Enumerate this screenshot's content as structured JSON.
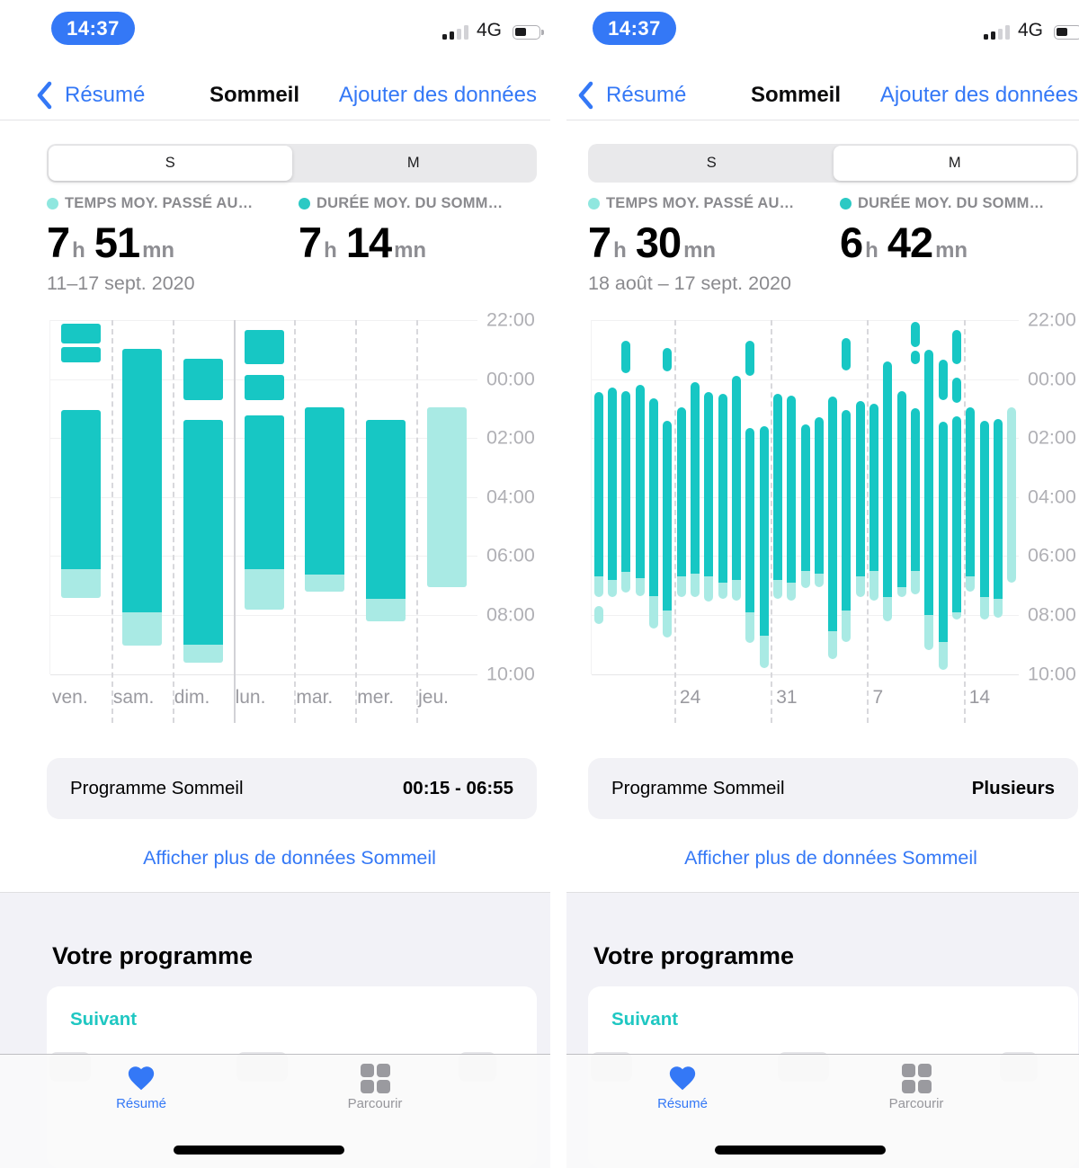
{
  "status_bar": {
    "time": "14:37",
    "network": "4G",
    "signal_bars_filled": 2,
    "signal_bars_total": 4,
    "battery_percent": 45
  },
  "nav": {
    "back": "Résumé",
    "title": "Sommeil",
    "action": "Ajouter des données"
  },
  "segments": {
    "s": "S",
    "m": "M"
  },
  "units": {
    "h": "h",
    "mn": "mn"
  },
  "schedule_label": "Programme Sommeil",
  "more_link": "Afficher plus de données Sommeil",
  "section_title": "Votre programme",
  "next_label": "Suivant",
  "tab_bar": {
    "resume": "Résumé",
    "browse": "Parcourir"
  },
  "colors": {
    "accent_blue": "#3478F6",
    "sleep_teal": "#17C7C4",
    "sleep_teal_light": "#A9EAE4"
  },
  "panels": [
    {
      "segment_selected": "S",
      "stats": [
        {
          "label": "TEMPS MOY. PASSÉ AU…",
          "hours": "7",
          "minutes": "51"
        },
        {
          "label": "DURÉE MOY. DU SOMM…",
          "hours": "7",
          "minutes": "14"
        }
      ],
      "date_range": "11–17 sept. 2020",
      "schedule_value": "00:15 - 06:55",
      "chart": {
        "type": "bar",
        "note": "hours are offsets after 22:00; dark = asleep, light = in bed",
        "y_ticks": [
          "22:00",
          "00:00",
          "02:00",
          "04:00",
          "06:00",
          "08:00",
          "10:00"
        ],
        "separators": [
          {
            "slot": 1,
            "style": "dashed"
          },
          {
            "slot": 2,
            "style": "dashed"
          },
          {
            "slot": 3,
            "style": "solid"
          },
          {
            "slot": 4,
            "style": "dashed"
          },
          {
            "slot": 5,
            "style": "dashed"
          },
          {
            "slot": 6,
            "style": "dashed"
          }
        ],
        "bars": [
          {
            "label": "ven.",
            "pre": [
              [
                0.12,
                0.78
              ],
              [
                0.9,
                1.42
              ]
            ],
            "dark": [
              3.05,
              8.45
            ],
            "light": [
              8.45,
              9.42
            ]
          },
          {
            "label": "sam.",
            "dark": [
              0.98,
              9.9
            ],
            "light": [
              9.9,
              11.05
            ]
          },
          {
            "label": "dim.",
            "pre": [
              [
                1.32,
                2.72
              ]
            ],
            "dark": [
              3.38,
              11.0
            ],
            "light": [
              11.0,
              11.62
            ]
          },
          {
            "label": "lun.",
            "pre": [
              [
                0.35,
                1.5
              ],
              [
                1.85,
                2.72
              ]
            ],
            "dark": [
              3.22,
              8.45
            ],
            "light": [
              8.45,
              9.82
            ]
          },
          {
            "label": "mar.",
            "dark": [
              2.97,
              8.62
            ],
            "light": [
              8.62,
              9.22
            ]
          },
          {
            "label": "mer.",
            "dark": [
              3.38,
              9.45
            ],
            "light": [
              9.45,
              10.22
            ]
          },
          {
            "label": "jeu.",
            "light": [
              2.97,
              9.05
            ]
          }
        ]
      }
    },
    {
      "segment_selected": "M",
      "stats": [
        {
          "label": "TEMPS MOY. PASSÉ AU…",
          "hours": "7",
          "minutes": "30"
        },
        {
          "label": "DURÉE MOY. DU SOMM…",
          "hours": "6",
          "minutes": "42"
        }
      ],
      "date_range": "18 août – 17 sept. 2020",
      "schedule_value": "Plusieurs",
      "chart": {
        "type": "bar",
        "note": "31 days, 18 août to 17 sept; hours are offsets after 22:00",
        "y_ticks": [
          "22:00",
          "00:00",
          "02:00",
          "04:00",
          "06:00",
          "08:00",
          "10:00"
        ],
        "separators": [
          {
            "slot": 6,
            "style": "dashed"
          },
          {
            "slot": 13,
            "style": "dashed"
          },
          {
            "slot": 20,
            "style": "dashed"
          },
          {
            "slot": 27,
            "style": "dashed"
          }
        ],
        "x_ticks": [
          {
            "slot": 6,
            "label": "24"
          },
          {
            "slot": 13,
            "label": "31"
          },
          {
            "slot": 20,
            "label": "7"
          },
          {
            "slot": 27,
            "label": "14"
          }
        ],
        "bars": [
          {
            "dark": [
              2.45,
              8.7
            ],
            "light": [
              8.7,
              9.4
            ],
            "extra_light": [
              [
                9.7,
                10.3
              ]
            ]
          },
          {
            "dark": [
              2.3,
              8.8
            ],
            "light": [
              8.8,
              9.4
            ]
          },
          {
            "pre": [
              [
                0.7,
                1.8
              ]
            ],
            "dark": [
              2.4,
              8.55
            ],
            "light": [
              8.55,
              9.25
            ]
          },
          {
            "dark": [
              2.2,
              8.75
            ],
            "light": [
              8.75,
              9.35
            ]
          },
          {
            "dark": [
              2.65,
              9.35
            ],
            "light": [
              9.35,
              10.45
            ]
          },
          {
            "pre": [
              [
                0.95,
                1.75
              ]
            ],
            "dark": [
              3.4,
              9.85
            ],
            "light": [
              9.85,
              10.75
            ]
          },
          {
            "dark": [
              2.95,
              8.7
            ],
            "light": [
              8.7,
              9.4
            ]
          },
          {
            "dark": [
              2.1,
              8.6
            ],
            "light": [
              8.6,
              9.4
            ]
          },
          {
            "dark": [
              2.45,
              8.7
            ],
            "light": [
              8.7,
              9.55
            ]
          },
          {
            "dark": [
              2.5,
              8.9
            ],
            "light": [
              8.9,
              9.45
            ]
          },
          {
            "dark": [
              1.9,
              8.8
            ],
            "light": [
              8.8,
              9.5
            ]
          },
          {
            "pre": [
              [
                0.7,
                1.9
              ]
            ],
            "dark": [
              3.65,
              9.9
            ],
            "light": [
              9.9,
              10.95
            ]
          },
          {
            "dark": [
              3.6,
              10.7
            ],
            "light": [
              10.7,
              11.8
            ]
          },
          {
            "dark": [
              2.5,
              8.8
            ],
            "light": [
              8.8,
              9.45
            ]
          },
          {
            "dark": [
              2.55,
              8.9
            ],
            "light": [
              8.9,
              9.5
            ]
          },
          {
            "dark": [
              3.55,
              8.5
            ],
            "light": [
              8.5,
              9.1
            ]
          },
          {
            "dark": [
              3.3,
              8.6
            ],
            "light": [
              8.6,
              9.05
            ]
          },
          {
            "dark": [
              2.6,
              10.55
            ],
            "light": [
              10.55,
              11.5
            ]
          },
          {
            "pre": [
              [
                0.6,
                1.7
              ]
            ],
            "dark": [
              3.05,
              9.85
            ],
            "light": [
              9.85,
              10.9
            ]
          },
          {
            "dark": [
              2.75,
              8.7
            ],
            "light": [
              8.7,
              9.4
            ]
          },
          {
            "dark": [
              2.85,
              8.5
            ],
            "light": [
              8.5,
              9.5
            ]
          },
          {
            "dark": [
              1.4,
              9.4
            ],
            "light": [
              9.4,
              10.2
            ]
          },
          {
            "dark": [
              2.4,
              9.05
            ],
            "light": [
              9.05,
              9.4
            ]
          },
          {
            "pre": [
              [
                0.05,
                0.92
              ],
              [
                1.05,
                1.5
              ]
            ],
            "dark": [
              3.0,
              8.5
            ],
            "light": [
              8.5,
              9.3
            ]
          },
          {
            "dark": [
              1.0,
              10.0
            ],
            "light": [
              10.0,
              11.2
            ]
          },
          {
            "pre": [
              [
                1.35,
                2.7
              ]
            ],
            "dark": [
              3.45,
              10.9
            ],
            "light": [
              10.9,
              11.85
            ]
          },
          {
            "pre": [
              [
                0.35,
                1.5
              ],
              [
                1.95,
                2.8
              ]
            ],
            "dark": [
              3.25,
              9.9
            ],
            "light": [
              9.9,
              10.15
            ]
          },
          {
            "dark": [
              2.95,
              8.7
            ],
            "light": [
              8.7,
              9.2
            ]
          },
          {
            "dark": [
              3.4,
              9.4
            ],
            "light": [
              9.4,
              10.15
            ]
          },
          {
            "dark": [
              3.35,
              9.45
            ],
            "light": [
              9.45,
              10.1
            ]
          },
          {
            "light": [
              2.95,
              8.9
            ]
          }
        ]
      }
    }
  ]
}
